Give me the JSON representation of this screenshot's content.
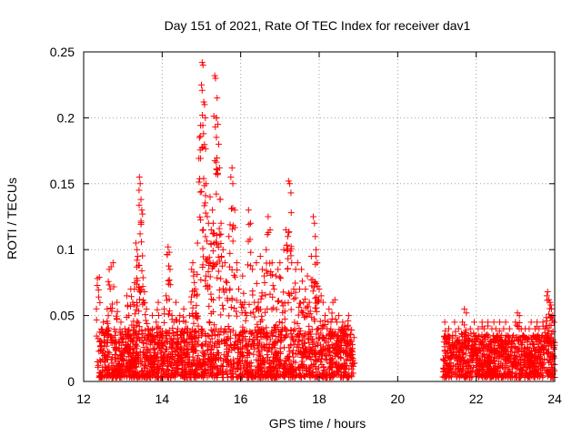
{
  "chart_data": {
    "type": "scatter",
    "title": "Day 151 of 2021, Rate Of TEC Index for receiver dav1",
    "xlabel": "GPS time / hours",
    "ylabel": "ROTI / TECUs",
    "xlim": [
      12,
      24
    ],
    "ylim": [
      0,
      0.25
    ],
    "x_ticks": [
      12,
      14,
      16,
      18,
      20,
      22,
      24
    ],
    "x_tick_labels": [
      "12",
      "14",
      "16",
      "18",
      "20",
      "22",
      "24"
    ],
    "y_ticks": [
      0,
      0.05,
      0.1,
      0.15,
      0.2,
      0.25
    ],
    "y_tick_labels": [
      "0",
      "0.05",
      "0.1",
      "0.15",
      "0.2",
      "0.25"
    ],
    "grid": true,
    "marker": "+",
    "color": "#ff0000",
    "series": [
      {
        "name": "ROTI",
        "points": [
          [
            12.35,
            0.078
          ],
          [
            12.4,
            0.079
          ],
          [
            12.45,
            0.03
          ],
          [
            12.5,
            0.045
          ],
          [
            12.55,
            0.02
          ],
          [
            12.6,
            0.055
          ],
          [
            12.65,
            0.085
          ],
          [
            12.7,
            0.087
          ],
          [
            12.75,
            0.09
          ],
          [
            12.8,
            0.035
          ],
          [
            12.85,
            0.06
          ],
          [
            12.9,
            0.025
          ],
          [
            12.95,
            0.045
          ],
          [
            13.0,
            0.03
          ],
          [
            13.05,
            0.04
          ],
          [
            13.1,
            0.065
          ],
          [
            13.15,
            0.05
          ],
          [
            13.2,
            0.07
          ],
          [
            13.25,
            0.06
          ],
          [
            13.3,
            0.075
          ],
          [
            13.33,
            0.105
          ],
          [
            13.36,
            0.1
          ],
          [
            13.38,
            0.095
          ],
          [
            13.4,
            0.088
          ],
          [
            13.42,
            0.155
          ],
          [
            13.44,
            0.15
          ],
          [
            13.46,
            0.138
          ],
          [
            13.48,
            0.13
          ],
          [
            13.5,
            0.127
          ],
          [
            13.55,
            0.068
          ],
          [
            13.6,
            0.055
          ],
          [
            13.65,
            0.04
          ],
          [
            13.7,
            0.035
          ],
          [
            13.75,
            0.05
          ],
          [
            13.8,
            0.03
          ],
          [
            13.85,
            0.045
          ],
          [
            13.9,
            0.06
          ],
          [
            13.95,
            0.04
          ],
          [
            14.0,
            0.035
          ],
          [
            14.05,
            0.055
          ],
          [
            14.1,
            0.065
          ],
          [
            14.15,
            0.102
          ],
          [
            14.18,
            0.098
          ],
          [
            14.2,
            0.085
          ],
          [
            14.25,
            0.05
          ],
          [
            14.3,
            0.045
          ],
          [
            14.35,
            0.06
          ],
          [
            14.4,
            0.04
          ],
          [
            14.45,
            0.05
          ],
          [
            14.5,
            0.035
          ],
          [
            14.55,
            0.055
          ],
          [
            14.6,
            0.045
          ],
          [
            14.65,
            0.04
          ],
          [
            14.7,
            0.05
          ],
          [
            14.75,
            0.085
          ],
          [
            14.78,
            0.09
          ],
          [
            14.8,
            0.08
          ],
          [
            14.82,
            0.075
          ],
          [
            14.85,
            0.07
          ],
          [
            14.88,
            0.065
          ],
          [
            14.9,
            0.105
          ],
          [
            14.95,
            0.185
          ],
          [
            14.97,
            0.186
          ],
          [
            15.0,
            0.225
          ],
          [
            15.02,
            0.242
          ],
          [
            15.04,
            0.24
          ],
          [
            15.06,
            0.212
          ],
          [
            15.08,
            0.21
          ],
          [
            15.1,
            0.2
          ],
          [
            15.12,
            0.15
          ],
          [
            15.15,
            0.125
          ],
          [
            15.18,
            0.12
          ],
          [
            15.2,
            0.09
          ],
          [
            15.22,
            0.14
          ],
          [
            15.25,
            0.115
          ],
          [
            15.28,
            0.13
          ],
          [
            15.3,
            0.12
          ],
          [
            15.32,
            0.105
          ],
          [
            15.34,
            0.232
          ],
          [
            15.36,
            0.23
          ],
          [
            15.38,
            0.2
          ],
          [
            15.4,
            0.215
          ],
          [
            15.42,
            0.195
          ],
          [
            15.44,
            0.18
          ],
          [
            15.46,
            0.162
          ],
          [
            15.48,
            0.138
          ],
          [
            15.5,
            0.12
          ],
          [
            15.55,
            0.1
          ],
          [
            15.6,
            0.09
          ],
          [
            15.65,
            0.075
          ],
          [
            15.7,
            0.11
          ],
          [
            15.75,
            0.155
          ],
          [
            15.78,
            0.162
          ],
          [
            15.8,
            0.15
          ],
          [
            15.85,
            0.13
          ],
          [
            15.9,
            0.09
          ],
          [
            15.95,
            0.07
          ],
          [
            16.0,
            0.06
          ],
          [
            16.05,
            0.08
          ],
          [
            16.1,
            0.06
          ],
          [
            16.15,
            0.05
          ],
          [
            16.2,
            0.13
          ],
          [
            16.25,
            0.12
          ],
          [
            16.3,
            0.085
          ],
          [
            16.35,
            0.06
          ],
          [
            16.4,
            0.09
          ],
          [
            16.45,
            0.06
          ],
          [
            16.5,
            0.095
          ],
          [
            16.55,
            0.085
          ],
          [
            16.6,
            0.08
          ],
          [
            16.65,
            0.1
          ],
          [
            16.7,
            0.125
          ],
          [
            16.75,
            0.115
          ],
          [
            16.8,
            0.09
          ],
          [
            16.85,
            0.07
          ],
          [
            16.9,
            0.08
          ],
          [
            16.95,
            0.085
          ],
          [
            17.0,
            0.09
          ],
          [
            17.05,
            0.06
          ],
          [
            17.1,
            0.1
          ],
          [
            17.15,
            0.115
          ],
          [
            17.2,
            0.11
          ],
          [
            17.22,
            0.152
          ],
          [
            17.25,
            0.15
          ],
          [
            17.28,
            0.143
          ],
          [
            17.3,
            0.09
          ],
          [
            17.35,
            0.07
          ],
          [
            17.4,
            0.085
          ],
          [
            17.45,
            0.09
          ],
          [
            17.5,
            0.07
          ],
          [
            17.55,
            0.085
          ],
          [
            17.6,
            0.06
          ],
          [
            17.65,
            0.07
          ],
          [
            17.7,
            0.08
          ],
          [
            17.75,
            0.06
          ],
          [
            17.8,
            0.095
          ],
          [
            17.85,
            0.125
          ],
          [
            17.88,
            0.12
          ],
          [
            17.9,
            0.11
          ],
          [
            17.92,
            0.1
          ],
          [
            17.95,
            0.09
          ],
          [
            18.0,
            0.07
          ],
          [
            18.05,
            0.065
          ],
          [
            18.1,
            0.06
          ],
          [
            18.15,
            0.05
          ],
          [
            18.2,
            0.04
          ],
          [
            18.25,
            0.055
          ],
          [
            18.3,
            0.045
          ],
          [
            18.35,
            0.06
          ],
          [
            18.4,
            0.062
          ],
          [
            18.45,
            0.045
          ],
          [
            18.5,
            0.05
          ],
          [
            18.55,
            0.035
          ],
          [
            18.6,
            0.045
          ],
          [
            18.65,
            0.042
          ],
          [
            18.7,
            0.035
          ],
          [
            18.75,
            0.05
          ],
          [
            18.8,
            0.03
          ],
          [
            18.85,
            0.025
          ],
          [
            21.2,
            0.045
          ],
          [
            21.25,
            0.03
          ],
          [
            21.3,
            0.04
          ],
          [
            21.35,
            0.025
          ],
          [
            21.4,
            0.035
          ],
          [
            21.45,
            0.045
          ],
          [
            21.5,
            0.03
          ],
          [
            21.55,
            0.04
          ],
          [
            21.6,
            0.025
          ],
          [
            21.65,
            0.045
          ],
          [
            21.7,
            0.055
          ],
          [
            21.75,
            0.052
          ],
          [
            21.8,
            0.035
          ],
          [
            21.85,
            0.04
          ],
          [
            21.9,
            0.03
          ],
          [
            21.95,
            0.045
          ],
          [
            22.0,
            0.035
          ],
          [
            22.05,
            0.04
          ],
          [
            22.1,
            0.03
          ],
          [
            22.15,
            0.045
          ],
          [
            22.2,
            0.04
          ],
          [
            22.25,
            0.035
          ],
          [
            22.3,
            0.045
          ],
          [
            22.35,
            0.03
          ],
          [
            22.4,
            0.04
          ],
          [
            22.45,
            0.045
          ],
          [
            22.5,
            0.04
          ],
          [
            22.55,
            0.035
          ],
          [
            22.6,
            0.045
          ],
          [
            22.65,
            0.035
          ],
          [
            22.7,
            0.04
          ],
          [
            22.75,
            0.045
          ],
          [
            22.8,
            0.035
          ],
          [
            22.85,
            0.04
          ],
          [
            22.9,
            0.03
          ],
          [
            22.95,
            0.035
          ],
          [
            23.0,
            0.045
          ],
          [
            23.05,
            0.052
          ],
          [
            23.1,
            0.05
          ],
          [
            23.15,
            0.04
          ],
          [
            23.2,
            0.035
          ],
          [
            23.25,
            0.04
          ],
          [
            23.3,
            0.03
          ],
          [
            23.35,
            0.04
          ],
          [
            23.4,
            0.045
          ],
          [
            23.45,
            0.035
          ],
          [
            23.5,
            0.04
          ],
          [
            23.55,
            0.045
          ],
          [
            23.6,
            0.04
          ],
          [
            23.65,
            0.03
          ],
          [
            23.7,
            0.045
          ],
          [
            23.75,
            0.04
          ],
          [
            23.8,
            0.065
          ],
          [
            23.82,
            0.068
          ],
          [
            23.85,
            0.062
          ],
          [
            23.88,
            0.06
          ],
          [
            23.9,
            0.058
          ],
          [
            23.92,
            0.055
          ],
          [
            23.95,
            0.05
          ],
          [
            23.98,
            0.045
          ]
        ]
      }
    ],
    "background_clusters": [
      {
        "x_start": 12.35,
        "x_end": 18.9,
        "y_low": 0.003,
        "y_high": 0.04
      },
      {
        "x_start": 21.15,
        "x_end": 24.0,
        "y_low": 0.003,
        "y_high": 0.035
      }
    ]
  }
}
